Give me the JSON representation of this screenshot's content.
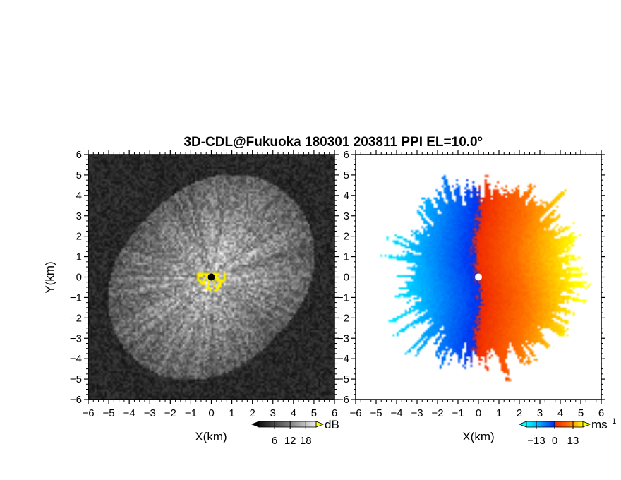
{
  "chart_data": {
    "title": "3D-CDL@Fukuoka 180301 203811 PPI EL=10.0º",
    "panels": [
      {
        "type": "heatmap",
        "name": "reflectivity-panel",
        "xlabel": "X(km)",
        "ylabel": "Y(km)",
        "xlim": [
          -6,
          6
        ],
        "ylim": [
          -6,
          6
        ],
        "xticks": [
          "−6",
          "−5",
          "−4",
          "−3",
          "−2",
          "−1",
          "0",
          "1",
          "2",
          "3",
          "4",
          "5",
          "6"
        ],
        "yticks": [
          "−6",
          "−5",
          "−4",
          "−3",
          "−2",
          "−1",
          "0",
          "1",
          "2",
          "3",
          "4",
          "5",
          "6"
        ],
        "colormap": "grayscale",
        "colorbar": {
          "ticks": [
            "6",
            "12",
            "18"
          ],
          "tick_values": [
            6,
            12,
            18
          ],
          "range": [
            0,
            22
          ],
          "unit": "dB",
          "low_color": "#000000",
          "high_color": "#ffff00"
        },
        "marker_color": "#000000",
        "near_field_color": "#ffff00"
      },
      {
        "type": "heatmap",
        "name": "velocity-panel",
        "xlabel": "X(km)",
        "ylabel": "",
        "xlim": [
          -6,
          6
        ],
        "ylim": [
          -6,
          6
        ],
        "xticks": [
          "−6",
          "−5",
          "−4",
          "−3",
          "−2",
          "−1",
          "0",
          "1",
          "2",
          "3",
          "4",
          "5",
          "6"
        ],
        "yticks": [
          "−6",
          "−5",
          "−4",
          "−3",
          "−2",
          "−1",
          "0",
          "1",
          "2",
          "3",
          "4",
          "5",
          "6"
        ],
        "colormap": "cyan-blue-red-yellow diverging",
        "colorbar": {
          "ticks": [
            "−13",
            "0",
            "13"
          ],
          "tick_values": [
            -13,
            0,
            13
          ],
          "range": [
            -20,
            20
          ],
          "unit": "ms",
          "unit_exponent": "−1",
          "low_color": "#00ffff",
          "high_color": "#ffff00"
        },
        "marker_color": "#ffffff"
      }
    ]
  }
}
